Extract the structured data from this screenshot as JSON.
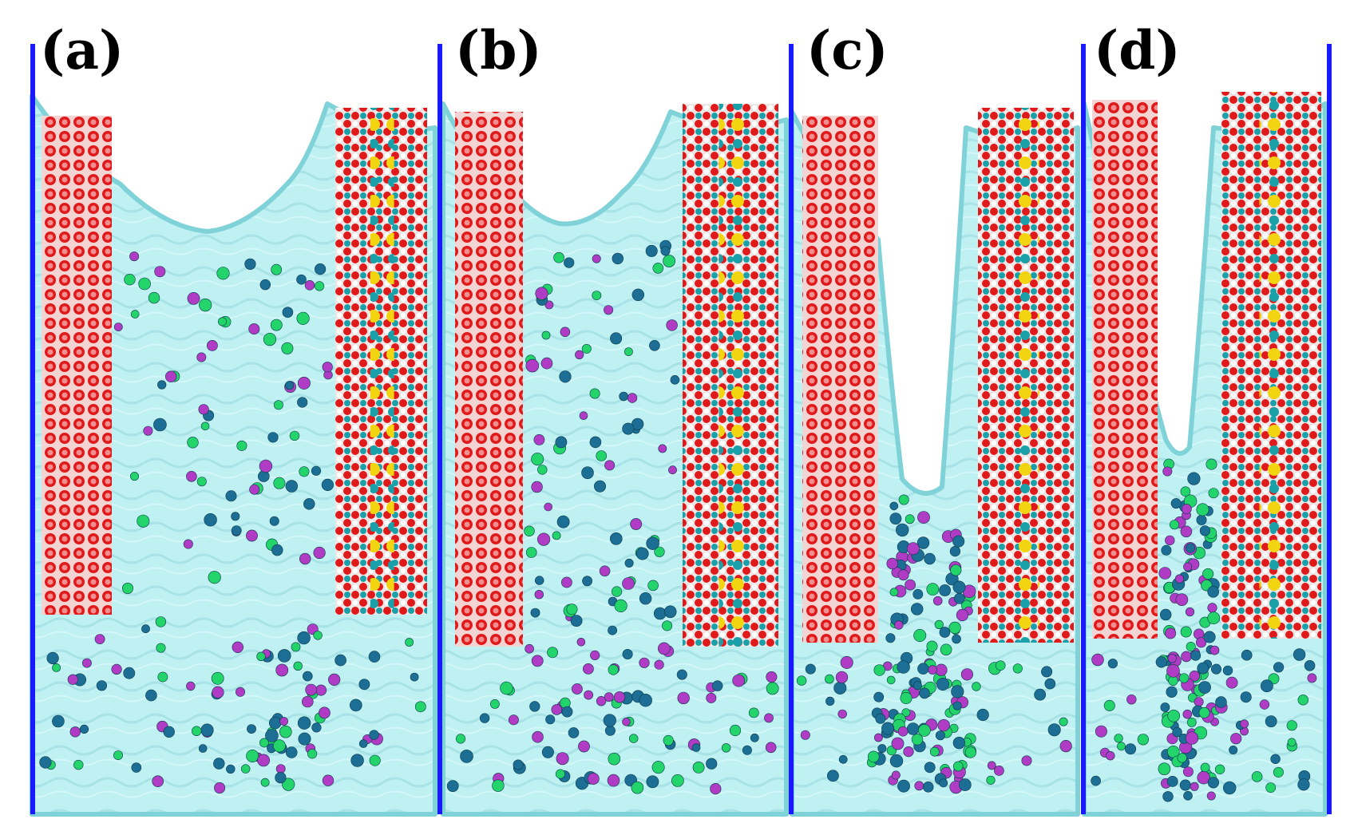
{
  "figure": {
    "panels": [
      {
        "label": "(a)"
      },
      {
        "label": "(b)"
      },
      {
        "label": "(c)"
      },
      {
        "label": "(d)"
      }
    ],
    "colors": {
      "water_surface": "#b9eef0",
      "water_surface_dark": "#7fd3d8",
      "slab_red": "#e01a1a",
      "slab_pink": "#ef8f8f",
      "yellow_atom": "#f2d411",
      "teal_atom": "#1aa0a8",
      "cation_green": "#22d46a",
      "anion_purple": "#b03bc4",
      "cluster_blue": "#1c6e95",
      "wall_blue": "#1a1aff"
    }
  }
}
